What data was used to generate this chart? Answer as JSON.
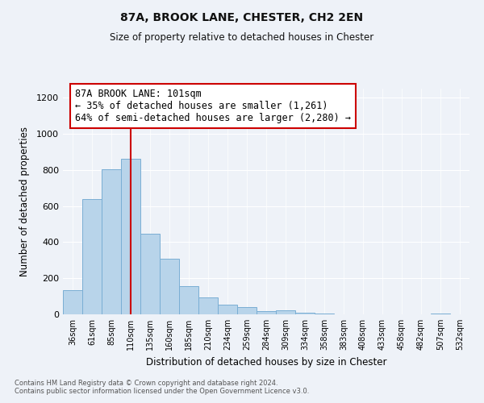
{
  "title": "87A, BROOK LANE, CHESTER, CH2 2EN",
  "subtitle": "Size of property relative to detached houses in Chester",
  "xlabel": "Distribution of detached houses by size in Chester",
  "ylabel": "Number of detached properties",
  "bar_color": "#b8d4ea",
  "bar_edge_color": "#7aaed4",
  "categories": [
    "36sqm",
    "61sqm",
    "85sqm",
    "110sqm",
    "135sqm",
    "160sqm",
    "185sqm",
    "210sqm",
    "234sqm",
    "259sqm",
    "284sqm",
    "309sqm",
    "334sqm",
    "358sqm",
    "383sqm",
    "408sqm",
    "433sqm",
    "458sqm",
    "482sqm",
    "507sqm",
    "532sqm"
  ],
  "values": [
    135,
    640,
    805,
    860,
    445,
    310,
    155,
    95,
    52,
    42,
    17,
    22,
    10,
    5,
    2,
    0,
    0,
    0,
    0,
    5,
    0
  ],
  "vline_x": 3.0,
  "vline_color": "#cc0000",
  "annotation_line1": "87A BROOK LANE: 101sqm",
  "annotation_line2": "← 35% of detached houses are smaller (1,261)",
  "annotation_line3": "64% of semi-detached houses are larger (2,280) →",
  "annotation_box_color": "#ffffff",
  "annotation_box_edge": "#cc0000",
  "ylim": [
    0,
    1250
  ],
  "yticks": [
    0,
    200,
    400,
    600,
    800,
    1000,
    1200
  ],
  "footer_line1": "Contains HM Land Registry data © Crown copyright and database right 2024.",
  "footer_line2": "Contains public sector information licensed under the Open Government Licence v3.0.",
  "background_color": "#eef2f8"
}
